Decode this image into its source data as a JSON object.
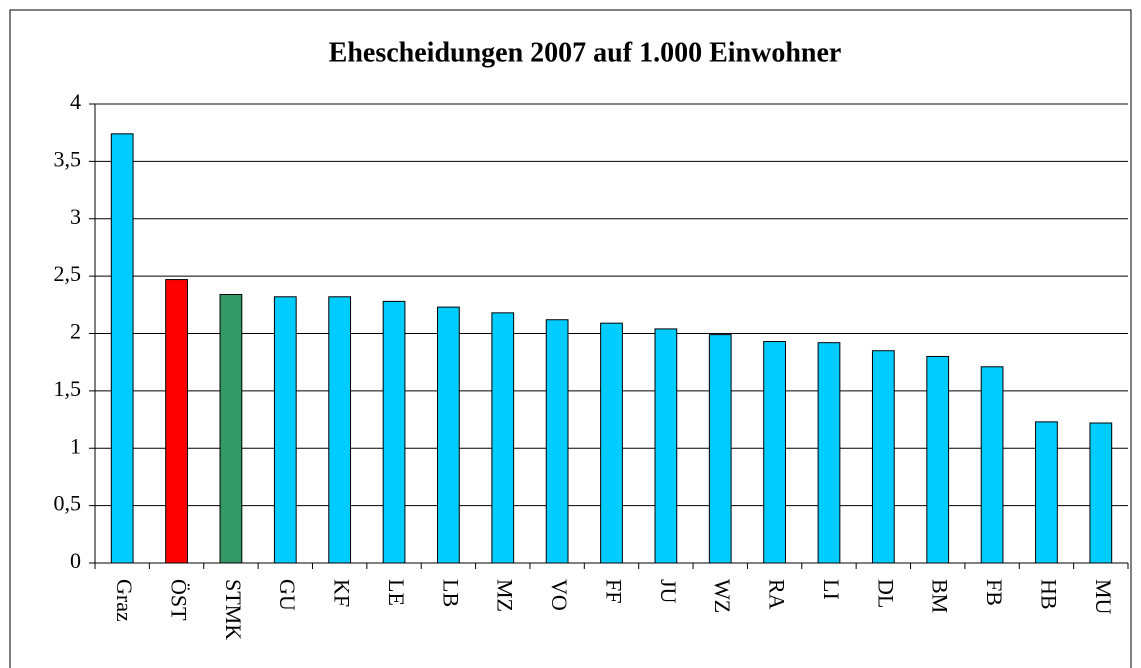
{
  "chart_data": {
    "type": "bar",
    "title": "Ehescheidungen 2007 auf 1.000 Einwohner",
    "categories": [
      "Graz",
      "ÖST",
      "STMK",
      "GU",
      "KF",
      "LE",
      "LB",
      "MZ",
      "VO",
      "FF",
      "JU",
      "WZ",
      "RA",
      "LI",
      "DL",
      "BM",
      "FB",
      "HB",
      "MU"
    ],
    "values": [
      3.74,
      2.47,
      2.34,
      2.32,
      2.32,
      2.28,
      2.23,
      2.18,
      2.12,
      2.09,
      2.04,
      1.99,
      1.93,
      1.92,
      1.85,
      1.8,
      1.71,
      1.23,
      1.22
    ],
    "colors": [
      "#00ccff",
      "#ff0000",
      "#339966",
      "#00ccff",
      "#00ccff",
      "#00ccff",
      "#00ccff",
      "#00ccff",
      "#00ccff",
      "#00ccff",
      "#00ccff",
      "#00ccff",
      "#00ccff",
      "#00ccff",
      "#00ccff",
      "#00ccff",
      "#00ccff",
      "#00ccff",
      "#00ccff"
    ],
    "ylim": [
      0,
      4
    ],
    "yticks": [
      0,
      {
        "value": 0.5,
        "label": "0,5"
      },
      1,
      {
        "value": 1.5,
        "label": "1,5"
      },
      2,
      {
        "value": 2.5,
        "label": "2,5"
      },
      3,
      {
        "value": 3.5,
        "label": "3,5"
      },
      4
    ],
    "grid": true
  }
}
